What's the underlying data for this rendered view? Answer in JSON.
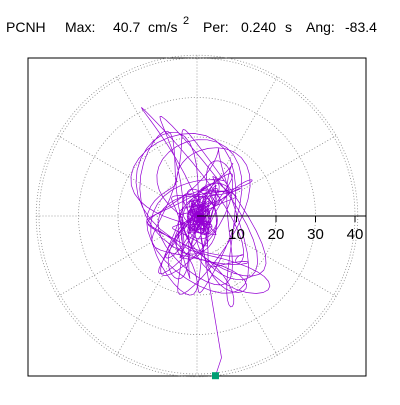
{
  "header": {
    "station": "PCNH",
    "max_label": "Max:",
    "max_value": "40.7",
    "max_unit": "cm/s",
    "max_unit_exp": "2",
    "per_label": "Per:",
    "per_value": "0.240",
    "per_unit": "s",
    "ang_label": "Ang:",
    "ang_value": "-83.4"
  },
  "chart_data": {
    "type": "scatter",
    "title": "",
    "coordinate_system": "polar",
    "radial_tick_labels": [
      "10",
      "20",
      "30",
      "40"
    ],
    "radial_ticks": [
      10,
      20,
      30,
      40
    ],
    "radial_range": [
      0,
      40.7
    ],
    "angular_grid_step_deg": 30,
    "grid": true,
    "series": [
      {
        "color": "#9400d3",
        "description_of_marks": "particle-motion trace",
        "peak_radius": 40.7,
        "peak_angle_deg": -83.4
      }
    ],
    "marker": {
      "radius": 40.7,
      "angle_deg": -83.4,
      "color": "#009e73",
      "shape": "square"
    },
    "colors": {
      "trace": "#9400d3",
      "marker": "#009e73",
      "grid": "#888888",
      "axis": "#000000"
    }
  }
}
